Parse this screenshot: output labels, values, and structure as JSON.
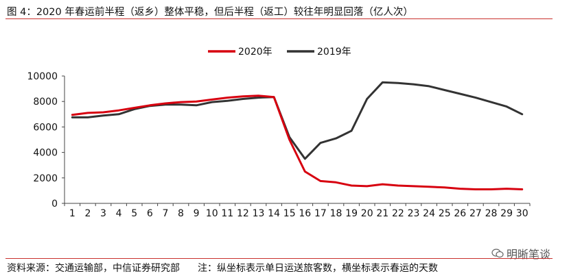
{
  "header": {
    "title": "图 4：2020 年春运前半程（返乡）整体平稳，但后半程（返工）较往年明显回落（亿人次）"
  },
  "footer": {
    "source": "资料来源：交通运输部，中信证券研究部",
    "note": "注：纵坐标表示单日运送旅客数，横坐标表示春运的天数"
  },
  "watermark": {
    "text": "明晰笔谈",
    "icon": "wechat-icon"
  },
  "chart_data": {
    "type": "line",
    "x": [
      1,
      2,
      3,
      4,
      5,
      6,
      7,
      8,
      9,
      10,
      11,
      12,
      13,
      14,
      15,
      16,
      17,
      18,
      19,
      20,
      21,
      22,
      23,
      24,
      25,
      26,
      27,
      28,
      29,
      30
    ],
    "xticks": [
      "1",
      "2",
      "3",
      "4",
      "5",
      "6",
      "7",
      "8",
      "9",
      "10",
      "11",
      "12",
      "13",
      "14",
      "15",
      "16",
      "17",
      "18",
      "19",
      "20",
      "21",
      "22",
      "23",
      "24",
      "25",
      "26",
      "27",
      "28",
      "29",
      "30"
    ],
    "ylim": [
      0,
      10000
    ],
    "yticks": [
      "0",
      "2000",
      "4000",
      "6000",
      "8000",
      "10000"
    ],
    "grid": false,
    "legend_position": "top-center",
    "series": [
      {
        "name": "2020年",
        "color": "#d7000f",
        "values": [
          6950,
          7100,
          7150,
          7300,
          7500,
          7700,
          7850,
          7950,
          8000,
          8150,
          8300,
          8400,
          8450,
          8350,
          5000,
          2500,
          1750,
          1650,
          1400,
          1350,
          1500,
          1400,
          1350,
          1300,
          1250,
          1150,
          1100,
          1100,
          1150,
          1100
        ]
      },
      {
        "name": "2019年",
        "color": "#333333",
        "values": [
          6750,
          6750,
          6900,
          7000,
          7400,
          7650,
          7750,
          7750,
          7700,
          7950,
          8050,
          8200,
          8300,
          8350,
          5200,
          3500,
          4750,
          5100,
          5700,
          8200,
          9500,
          9450,
          9350,
          9200,
          8900,
          8600,
          8300,
          7950,
          7600,
          7000
        ]
      }
    ]
  }
}
